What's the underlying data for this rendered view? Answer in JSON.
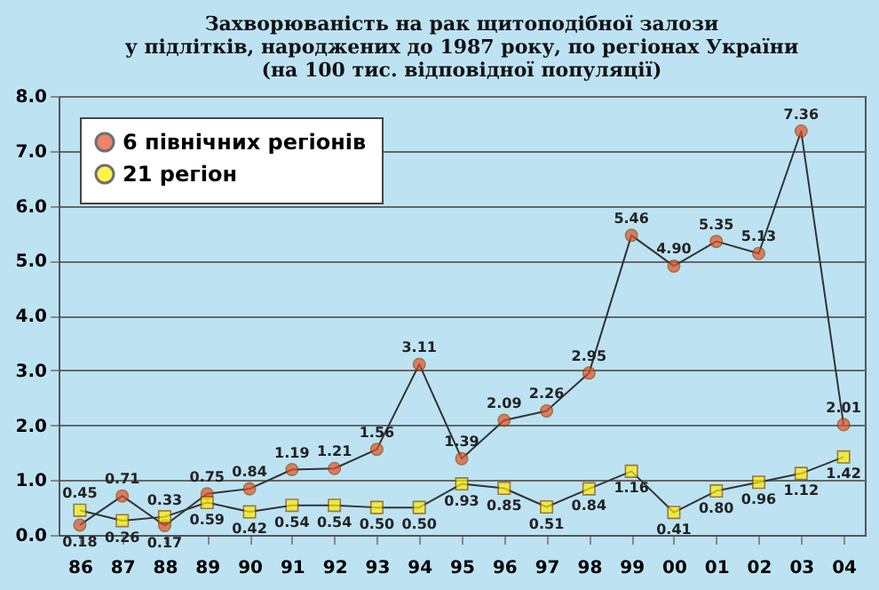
{
  "chart_data": {
    "type": "line",
    "title": [
      "Захворюваність  на рак щитоподібної залози",
      "у підлітків, народжених до 1987 року, по регіонах  України",
      "(на 100 тис. відповідної популяції)"
    ],
    "categories": [
      "86",
      "87",
      "88",
      "89",
      "90",
      "91",
      "92",
      "93",
      "94",
      "95",
      "96",
      "97",
      "98",
      "99",
      "00",
      "01",
      "02",
      "03",
      "04"
    ],
    "series": [
      {
        "name": "6 північних регіонів",
        "color": "#e8502a",
        "marker": "circle",
        "values": [
          0.18,
          0.71,
          0.17,
          0.75,
          0.84,
          1.19,
          1.21,
          1.56,
          3.11,
          1.39,
          2.09,
          2.26,
          2.95,
          5.46,
          4.9,
          5.35,
          5.13,
          7.36,
          2.01
        ],
        "value_labels": [
          "0.18",
          "0.71",
          "0.17",
          "0.75",
          "0.84",
          "1.19",
          "1.21",
          "1.56",
          "3.11",
          "1.39",
          "2.09",
          "2.26",
          "2.95",
          "5.46",
          "4.90",
          "5.35",
          "5.13",
          "7.36",
          "2.01"
        ]
      },
      {
        "name": "21 регіон",
        "color": "#ffee00",
        "marker": "square",
        "values": [
          0.45,
          0.26,
          0.33,
          0.59,
          0.42,
          0.54,
          0.54,
          0.5,
          0.5,
          0.93,
          0.85,
          0.51,
          0.84,
          1.16,
          0.41,
          0.8,
          0.96,
          1.12,
          1.42
        ],
        "value_labels": [
          "0.45",
          "0.26",
          "0.33",
          "0.59",
          "0.42",
          "0.54",
          "0.54",
          "0.50",
          "0.50",
          "0.93",
          "0.85",
          "0.51",
          "0.84",
          "1.16",
          "0.41",
          "0.80",
          "0.96",
          "1.12",
          "1.42"
        ]
      }
    ],
    "ylim": [
      0,
      8
    ],
    "yticks": [
      {
        "value": 0,
        "label": "0.0"
      },
      {
        "value": 1,
        "label": "1.0"
      },
      {
        "value": 2,
        "label": "2.0"
      },
      {
        "value": 3,
        "label": "3.0"
      },
      {
        "value": 4,
        "label": "4.0"
      },
      {
        "value": 5,
        "label": "5.0"
      },
      {
        "value": 6,
        "label": "6.0"
      },
      {
        "value": 7,
        "label": "7.0"
      },
      {
        "value": 8,
        "label": "8.0"
      }
    ],
    "grid": "y",
    "legend": "top left"
  }
}
